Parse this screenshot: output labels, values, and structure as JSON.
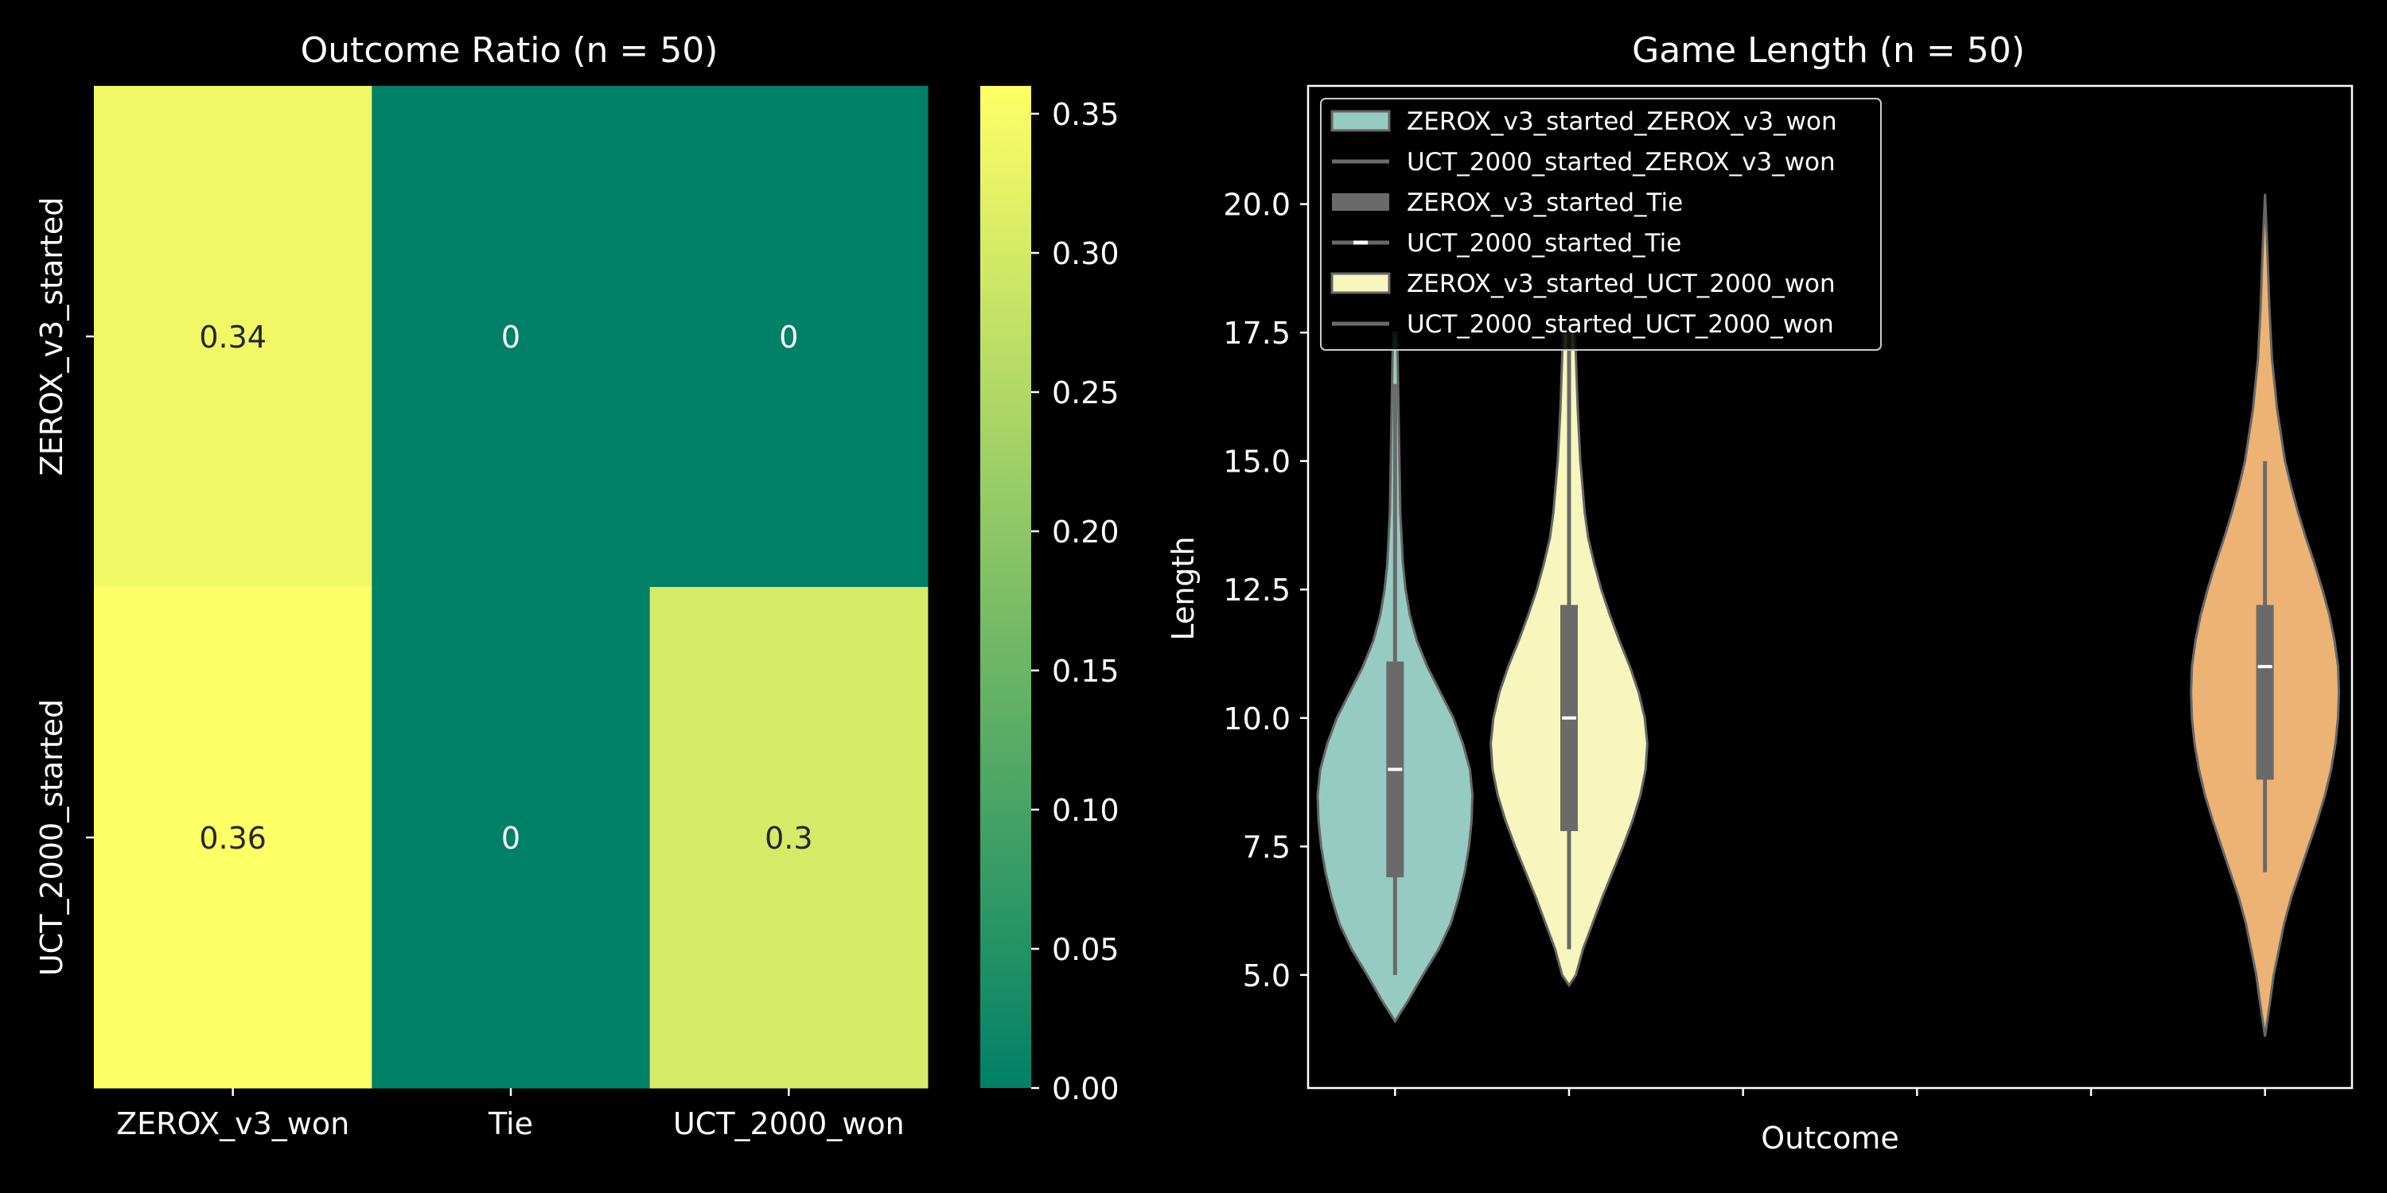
{
  "figure": {
    "background": "#000000",
    "text_color": "#ffffff"
  },
  "chart_data": [
    {
      "type": "heatmap",
      "title": "Outcome Ratio (n = 50)",
      "rows": [
        "ZEROX_v3_started",
        "UCT_2000_started"
      ],
      "columns": [
        "ZEROX_v3_won",
        "Tie",
        "UCT_2000_won"
      ],
      "values": [
        [
          0.34,
          0,
          0
        ],
        [
          0.36,
          0,
          0.3
        ]
      ],
      "cell_labels": [
        [
          "0.34",
          "0",
          "0"
        ],
        [
          "0.36",
          "0",
          "0.3"
        ]
      ],
      "colormap": "summer",
      "colormap_start": "#008066",
      "colormap_end": "#ffff66",
      "colorbar": {
        "range": [
          0,
          0.36
        ],
        "ticks": [
          0.0,
          0.05,
          0.1,
          0.15,
          0.2,
          0.25,
          0.3,
          0.35
        ],
        "tick_labels": [
          "0.00",
          "0.05",
          "0.10",
          "0.15",
          "0.20",
          "0.25",
          "0.30",
          "0.35"
        ]
      }
    },
    {
      "type": "violin",
      "title": "Game Length (n = 50)",
      "xlabel": "Outcome",
      "ylabel": "Length",
      "ylim": [
        2.8,
        22.3
      ],
      "yticks": [
        5.0,
        7.5,
        10.0,
        12.5,
        15.0,
        17.5,
        20.0
      ],
      "ytick_labels": [
        "5.0",
        "7.5",
        "10.0",
        "12.5",
        "15.0",
        "17.5",
        "20.0"
      ],
      "categories": [
        "ZEROX_v3_started_ZEROX_v3_won",
        "UCT_2000_started_ZEROX_v3_won",
        "ZEROX_v3_started_Tie",
        "UCT_2000_started_Tie",
        "ZEROX_v3_started_UCT_2000_won",
        "UCT_2000_started_UCT_2000_won"
      ],
      "legend": {
        "placement": "top-left",
        "entries": [
          {
            "label": "ZEROX_v3_started_ZEROX_v3_won",
            "style": "patch",
            "color": "#96cbc2"
          },
          {
            "label": "UCT_2000_started_ZEROX_v3_won",
            "style": "line",
            "color": "#6a6a6a"
          },
          {
            "label": "ZEROX_v3_started_Tie",
            "style": "thick-line",
            "color": "#6a6a6a"
          },
          {
            "label": "UCT_2000_started_Tie",
            "style": "median-line",
            "color": "#6a6a6a"
          },
          {
            "label": "ZEROX_v3_started_UCT_2000_won",
            "style": "patch",
            "color": "#f7f7bd"
          },
          {
            "label": "UCT_2000_started_UCT_2000_won",
            "style": "line",
            "color": "#6a6a6a"
          }
        ]
      },
      "violins": [
        {
          "position": 0,
          "color": "#96cbc2",
          "whisker": [
            5.0,
            16.5
          ],
          "box": [
            6.9,
            11.1
          ],
          "median": 9.0,
          "density": [
            [
              4.1,
              0
            ],
            [
              4.5,
              0.15
            ],
            [
              5.0,
              0.32
            ],
            [
              5.5,
              0.5
            ],
            [
              6.0,
              0.64
            ],
            [
              6.5,
              0.73
            ],
            [
              7.0,
              0.8
            ],
            [
              7.5,
              0.85
            ],
            [
              8.0,
              0.88
            ],
            [
              8.5,
              0.89
            ],
            [
              9.0,
              0.86
            ],
            [
              9.5,
              0.78
            ],
            [
              10.0,
              0.67
            ],
            [
              10.5,
              0.52
            ],
            [
              11.0,
              0.37
            ],
            [
              11.5,
              0.25
            ],
            [
              12.0,
              0.17
            ],
            [
              12.5,
              0.12
            ],
            [
              13.0,
              0.09
            ],
            [
              14.0,
              0.06
            ],
            [
              15.0,
              0.05
            ],
            [
              16.0,
              0.04
            ],
            [
              17.0,
              0.03
            ],
            [
              17.5,
              0.02
            ]
          ]
        },
        {
          "position": 1,
          "color": "#f7f7bd",
          "whisker": [
            5.5,
            17.5
          ],
          "box": [
            7.8,
            12.2
          ],
          "median": 10.0,
          "density": [
            [
              4.8,
              0
            ],
            [
              5.0,
              0.08
            ],
            [
              5.5,
              0.16
            ],
            [
              6.0,
              0.27
            ],
            [
              6.5,
              0.38
            ],
            [
              7.0,
              0.5
            ],
            [
              7.5,
              0.62
            ],
            [
              8.0,
              0.73
            ],
            [
              8.5,
              0.82
            ],
            [
              9.0,
              0.88
            ],
            [
              9.5,
              0.9
            ],
            [
              10.0,
              0.87
            ],
            [
              10.5,
              0.8
            ],
            [
              11.0,
              0.7
            ],
            [
              11.5,
              0.58
            ],
            [
              12.0,
              0.47
            ],
            [
              12.5,
              0.37
            ],
            [
              13.0,
              0.29
            ],
            [
              13.5,
              0.22
            ],
            [
              14.0,
              0.18
            ],
            [
              15.0,
              0.13
            ],
            [
              16.0,
              0.1
            ],
            [
              17.0,
              0.08
            ],
            [
              17.5,
              0.07
            ]
          ]
        },
        {
          "position": 5,
          "color": "#edb374",
          "whisker": [
            7.0,
            15.0
          ],
          "box": [
            8.8,
            12.2
          ],
          "median": 11.0,
          "density": [
            [
              3.8,
              0
            ],
            [
              4.5,
              0.06
            ],
            [
              5.0,
              0.1
            ],
            [
              5.5,
              0.16
            ],
            [
              6.0,
              0.22
            ],
            [
              6.5,
              0.3
            ],
            [
              7.0,
              0.4
            ],
            [
              7.5,
              0.5
            ],
            [
              8.0,
              0.6
            ],
            [
              8.5,
              0.69
            ],
            [
              9.0,
              0.76
            ],
            [
              9.5,
              0.81
            ],
            [
              10.0,
              0.84
            ],
            [
              10.5,
              0.85
            ],
            [
              11.0,
              0.84
            ],
            [
              11.5,
              0.8
            ],
            [
              12.0,
              0.74
            ],
            [
              12.5,
              0.66
            ],
            [
              13.0,
              0.57
            ],
            [
              13.5,
              0.47
            ],
            [
              14.0,
              0.38
            ],
            [
              14.5,
              0.3
            ],
            [
              15.0,
              0.23
            ],
            [
              16.0,
              0.14
            ],
            [
              17.0,
              0.08
            ],
            [
              18.0,
              0.05
            ],
            [
              19.0,
              0.03
            ],
            [
              20.2,
              0
            ]
          ]
        }
      ]
    }
  ]
}
